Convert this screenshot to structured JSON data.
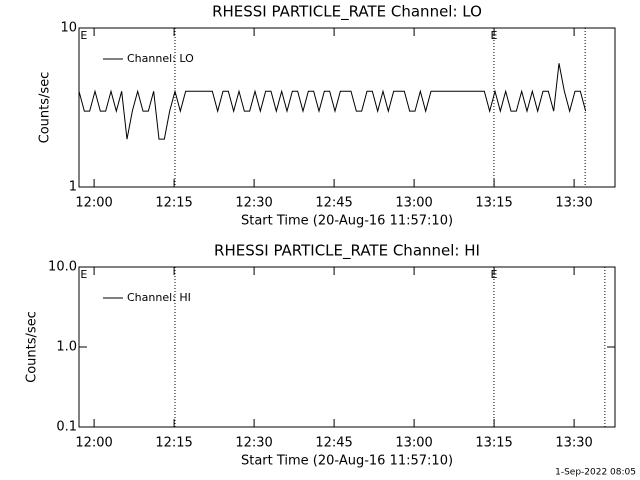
{
  "chart_data": [
    {
      "type": "line",
      "title": "RHESSI PARTICLE_RATE Channel: LO",
      "xlabel": "Start Time (20-Aug-16 11:57:10)",
      "ylabel": "Counts/sec",
      "log_y": true,
      "ylim": [
        1,
        10
      ],
      "yticks": [
        1,
        10
      ],
      "xlim": [
        0,
        100.5
      ],
      "xticks": [
        {
          "value": 2.83,
          "label": "12:00"
        },
        {
          "value": 17.83,
          "label": "12:15"
        },
        {
          "value": 32.83,
          "label": "12:30"
        },
        {
          "value": 47.83,
          "label": "12:45"
        },
        {
          "value": 62.83,
          "label": "13:00"
        },
        {
          "value": 77.83,
          "label": "13:15"
        },
        {
          "value": 92.83,
          "label": "13:30"
        }
      ],
      "vlines": [
        18.0,
        77.8,
        94.9
      ],
      "annotations": [
        {
          "x": 0.9,
          "text": "E"
        },
        {
          "x": 77.8,
          "text": "E"
        }
      ],
      "legend": "upper left",
      "x": [
        0,
        1,
        2,
        3,
        4,
        5,
        6,
        7,
        8,
        9,
        10,
        11,
        12,
        13,
        14,
        15,
        16,
        17,
        18,
        19,
        20,
        21,
        22,
        23,
        24,
        25,
        26,
        27,
        28,
        29,
        30,
        31,
        32,
        33,
        34,
        35,
        36,
        37,
        38,
        39,
        40,
        41,
        42,
        43,
        44,
        45,
        46,
        47,
        48,
        49,
        50,
        51,
        52,
        53,
        54,
        55,
        56,
        57,
        58,
        59,
        60,
        61,
        62,
        63,
        64,
        65,
        66,
        67,
        68,
        69,
        70,
        71,
        72,
        73,
        74,
        75,
        76,
        77,
        78,
        79,
        80,
        81,
        82,
        83,
        84,
        85,
        86,
        87,
        88,
        89,
        90,
        91,
        92,
        93,
        94,
        95
      ],
      "series": [
        {
          "name": "Channel: LO",
          "color": "#000000",
          "values": [
            4,
            3,
            3,
            4,
            3,
            3,
            4,
            3,
            4,
            2,
            3,
            4,
            3,
            3,
            4,
            2,
            2,
            3,
            4,
            3,
            4,
            4,
            4,
            4,
            4,
            4,
            3,
            4,
            4,
            3,
            4,
            3,
            3,
            4,
            3,
            4,
            4,
            3,
            4,
            3,
            4,
            4,
            3,
            4,
            4,
            3,
            4,
            4,
            3,
            4,
            4,
            4,
            3,
            3,
            4,
            4,
            3,
            4,
            3,
            4,
            4,
            4,
            3,
            3,
            4,
            3,
            4,
            4,
            4,
            4,
            4,
            4,
            4,
            4,
            4,
            4,
            4,
            3,
            4,
            3,
            4,
            3,
            3,
            4,
            3,
            4,
            3,
            4,
            4,
            3,
            6,
            4,
            3,
            4,
            4,
            3
          ]
        }
      ]
    },
    {
      "type": "line",
      "title": "RHESSI PARTICLE_RATE Channel: HI",
      "xlabel": "Start Time (20-Aug-16 11:57:10)",
      "ylabel": "Counts/sec",
      "log_y": true,
      "ylim": [
        0.1,
        10
      ],
      "yticks": [
        0.1,
        {
          "value": 1,
          "label": "1.0"
        },
        {
          "value": 10,
          "label": "10.0"
        }
      ],
      "xlim": [
        0,
        100.5
      ],
      "xticks": [
        {
          "value": 2.83,
          "label": "12:00"
        },
        {
          "value": 17.83,
          "label": "12:15"
        },
        {
          "value": 32.83,
          "label": "12:30"
        },
        {
          "value": 47.83,
          "label": "12:45"
        },
        {
          "value": 62.83,
          "label": "13:00"
        },
        {
          "value": 77.83,
          "label": "13:15"
        },
        {
          "value": 92.83,
          "label": "13:30"
        }
      ],
      "vlines": [
        18.0,
        77.8,
        98.6
      ],
      "annotations": [
        {
          "x": 0.9,
          "text": "E"
        },
        {
          "x": 77.8,
          "text": "E"
        }
      ],
      "legend": "upper left",
      "x": [],
      "series": [
        {
          "name": "Channel: HI",
          "color": "#000000",
          "values": []
        }
      ]
    }
  ],
  "footer": "1-Sep-2022 08:05"
}
